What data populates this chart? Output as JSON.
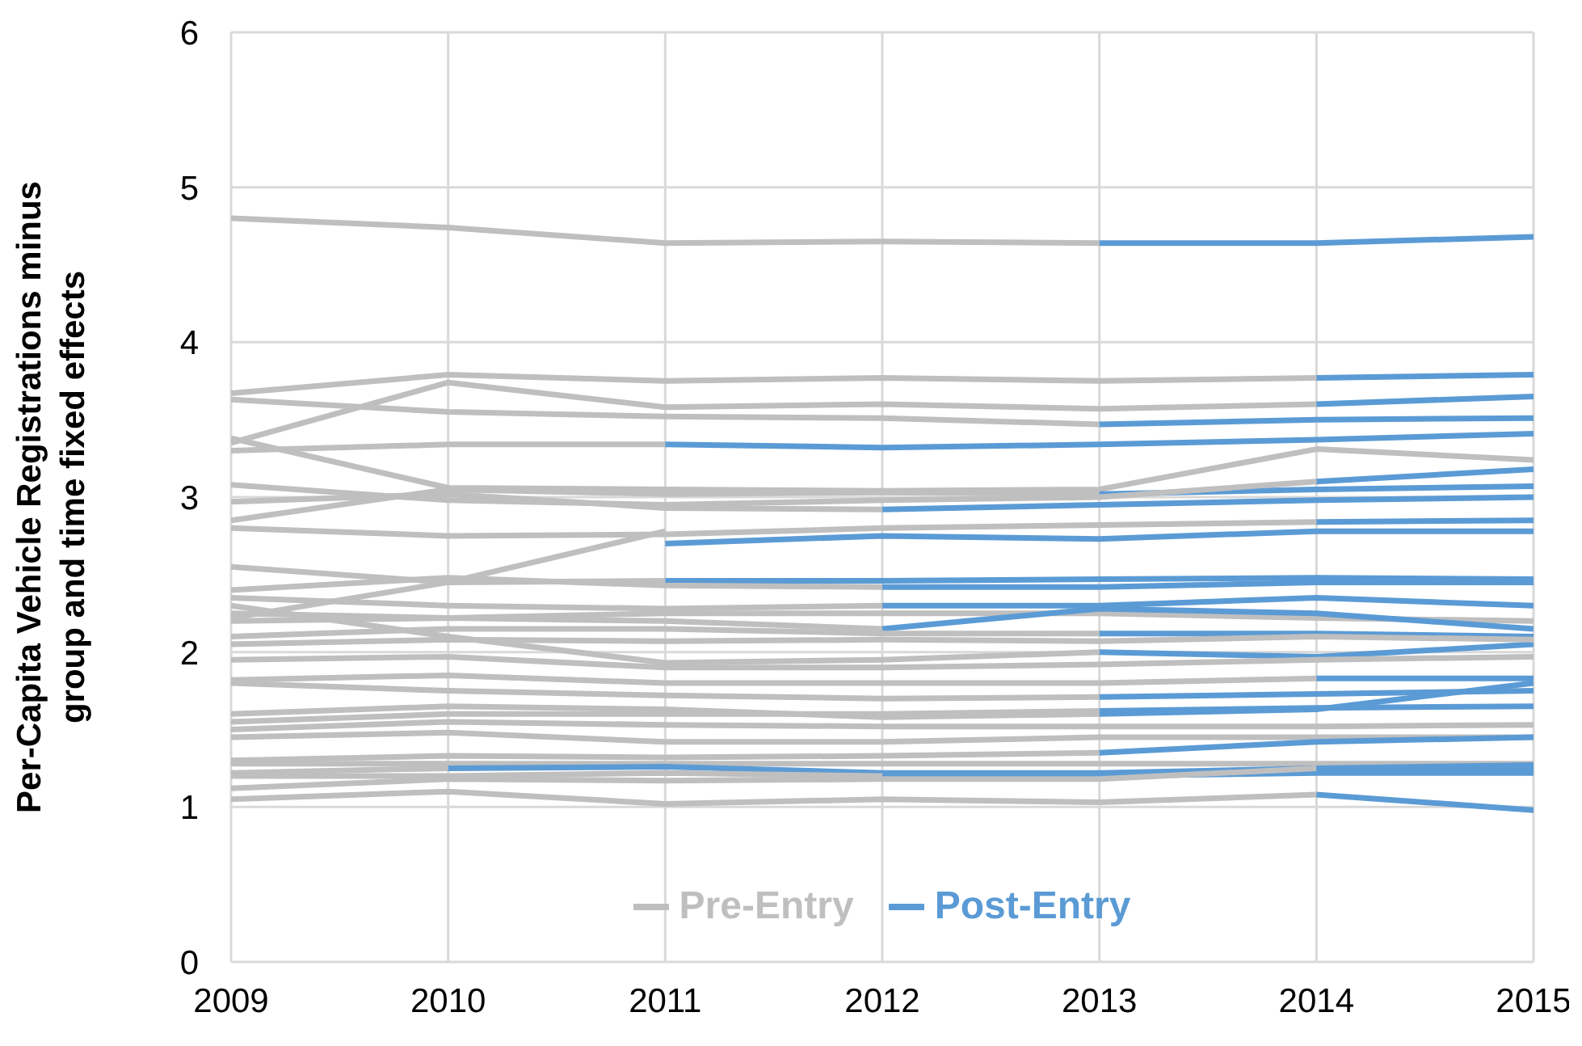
{
  "chart_data": {
    "type": "line",
    "ylabel": "Per-Capita Vehicle Registrations minus group and time fixed effects",
    "x": [
      2009,
      2010,
      2011,
      2012,
      2013,
      2014,
      2015
    ],
    "xlim": [
      2009,
      2015
    ],
    "xticks": [
      2009,
      2010,
      2011,
      2012,
      2013,
      2014,
      2015
    ],
    "ylim": [
      0,
      6
    ],
    "yticks": [
      0,
      1,
      2,
      3,
      4,
      5,
      6
    ],
    "grid": true,
    "legend": "bottom",
    "marker": "none",
    "line_style": "solid",
    "series": [
      {
        "name": "Pre-Entry",
        "color": "#bfbfbf",
        "values": [
          4.8,
          4.74,
          4.64,
          4.65,
          4.64,
          null,
          null
        ]
      },
      {
        "name": "Post-Entry",
        "color": "#5b9bd5",
        "values": [
          null,
          null,
          null,
          null,
          4.64,
          4.64,
          4.68
        ]
      },
      {
        "color": "#bfbfbf",
        "values": [
          3.67,
          3.79,
          3.75,
          3.77,
          3.75,
          3.77,
          null
        ]
      },
      {
        "color": "#5b9bd5",
        "values": [
          null,
          null,
          null,
          null,
          null,
          3.77,
          3.79
        ]
      },
      {
        "color": "#bfbfbf",
        "values": [
          3.35,
          3.74,
          3.58,
          3.6,
          3.57,
          3.6,
          null
        ]
      },
      {
        "color": "#5b9bd5",
        "values": [
          null,
          null,
          null,
          null,
          null,
          3.6,
          3.65
        ]
      },
      {
        "color": "#bfbfbf",
        "values": [
          3.63,
          3.55,
          3.52,
          3.51,
          3.47,
          null,
          null
        ]
      },
      {
        "color": "#5b9bd5",
        "values": [
          null,
          null,
          null,
          null,
          3.47,
          3.5,
          3.51
        ]
      },
      {
        "color": "#bfbfbf",
        "values": [
          3.3,
          3.34,
          3.34,
          null,
          null,
          null,
          null
        ]
      },
      {
        "color": "#5b9bd5",
        "values": [
          null,
          null,
          3.34,
          3.32,
          3.34,
          3.37,
          3.41
        ]
      },
      {
        "color": "#bfbfbf",
        "values": [
          3.38,
          3.06,
          3.05,
          3.04,
          3.05,
          3.31,
          3.24
        ]
      },
      {
        "color": "#bfbfbf",
        "values": [
          2.85,
          3.05,
          3.02,
          3.03,
          3.02,
          null,
          null
        ]
      },
      {
        "color": "#5b9bd5",
        "values": [
          null,
          null,
          null,
          null,
          3.02,
          3.05,
          3.07
        ]
      },
      {
        "color": "#bfbfbf",
        "values": [
          3.08,
          2.98,
          2.95,
          2.98,
          3.0,
          3.1,
          null
        ]
      },
      {
        "color": "#5b9bd5",
        "values": [
          null,
          null,
          null,
          null,
          null,
          3.1,
          3.18
        ]
      },
      {
        "color": "#bfbfbf",
        "values": [
          2.97,
          3.02,
          2.93,
          2.92,
          null,
          null,
          null
        ]
      },
      {
        "color": "#5b9bd5",
        "values": [
          null,
          null,
          null,
          2.92,
          2.95,
          2.98,
          3.0
        ]
      },
      {
        "color": "#bfbfbf",
        "values": [
          2.8,
          2.75,
          2.76,
          2.8,
          2.82,
          2.84,
          null
        ]
      },
      {
        "color": "#5b9bd5",
        "values": [
          null,
          null,
          null,
          null,
          null,
          2.84,
          2.85
        ]
      },
      {
        "color": "#bfbfbf",
        "values": [
          2.22,
          2.45,
          2.78,
          null,
          null,
          null,
          null
        ]
      },
      {
        "color": "#5b9bd5",
        "values": [
          null,
          null,
          2.7,
          2.75,
          2.73,
          2.78,
          2.78
        ]
      },
      {
        "color": "#bfbfbf",
        "values": [
          2.55,
          2.45,
          2.46,
          null,
          null,
          null,
          null
        ]
      },
      {
        "color": "#5b9bd5",
        "values": [
          null,
          null,
          2.46,
          2.46,
          2.47,
          2.48,
          2.47
        ]
      },
      {
        "color": "#bfbfbf",
        "values": [
          2.4,
          2.48,
          2.43,
          2.42,
          null,
          null,
          null
        ]
      },
      {
        "color": "#5b9bd5",
        "values": [
          null,
          null,
          null,
          2.42,
          2.42,
          2.45,
          2.45
        ]
      },
      {
        "color": "#bfbfbf",
        "values": [
          2.35,
          2.3,
          2.28,
          2.3,
          null,
          null,
          null
        ]
      },
      {
        "color": "#5b9bd5",
        "values": [
          null,
          null,
          null,
          2.3,
          2.3,
          2.35,
          2.3
        ]
      },
      {
        "color": "#bfbfbf",
        "values": [
          2.25,
          2.22,
          2.25,
          2.25,
          2.25,
          2.22,
          2.2
        ]
      },
      {
        "color": "#bfbfbf",
        "values": [
          2.2,
          2.22,
          2.2,
          2.15,
          null,
          null,
          null
        ]
      },
      {
        "color": "#5b9bd5",
        "values": [
          null,
          null,
          null,
          2.15,
          2.28,
          2.25,
          2.15
        ]
      },
      {
        "color": "#bfbfbf",
        "values": [
          2.1,
          2.15,
          2.15,
          2.12,
          2.12,
          null,
          null
        ]
      },
      {
        "color": "#5b9bd5",
        "values": [
          null,
          null,
          null,
          null,
          2.12,
          2.12,
          2.1
        ]
      },
      {
        "color": "#bfbfbf",
        "values": [
          2.3,
          2.1,
          1.93,
          1.95,
          2.0,
          null,
          null
        ]
      },
      {
        "color": "#5b9bd5",
        "values": [
          null,
          null,
          null,
          null,
          2.0,
          1.97,
          2.05
        ]
      },
      {
        "color": "#bfbfbf",
        "values": [
          2.05,
          2.08,
          2.07,
          2.08,
          2.07,
          2.1,
          2.08
        ]
      },
      {
        "color": "#bfbfbf",
        "values": [
          1.95,
          1.97,
          1.9,
          1.9,
          1.92,
          1.95,
          1.97
        ]
      },
      {
        "color": "#bfbfbf",
        "values": [
          1.82,
          1.85,
          1.8,
          1.8,
          1.8,
          1.83,
          null
        ]
      },
      {
        "color": "#5b9bd5",
        "values": [
          null,
          null,
          null,
          null,
          null,
          1.83,
          1.83
        ]
      },
      {
        "color": "#bfbfbf",
        "values": [
          1.8,
          1.75,
          1.72,
          1.7,
          1.71,
          null,
          null
        ]
      },
      {
        "color": "#5b9bd5",
        "values": [
          null,
          null,
          null,
          null,
          1.71,
          1.73,
          1.75
        ]
      },
      {
        "color": "#bfbfbf",
        "values": [
          1.6,
          1.65,
          1.63,
          1.58,
          1.6,
          null,
          null
        ]
      },
      {
        "color": "#5b9bd5",
        "values": [
          null,
          null,
          null,
          null,
          1.6,
          1.63,
          1.8
        ]
      },
      {
        "color": "#bfbfbf",
        "values": [
          1.55,
          1.6,
          1.6,
          1.6,
          1.62,
          null,
          null
        ]
      },
      {
        "color": "#5b9bd5",
        "values": [
          null,
          null,
          null,
          null,
          1.62,
          1.64,
          1.65
        ]
      },
      {
        "color": "#bfbfbf",
        "values": [
          1.5,
          1.55,
          1.53,
          1.52,
          1.52,
          1.52,
          1.53
        ]
      },
      {
        "color": "#bfbfbf",
        "values": [
          1.45,
          1.48,
          1.42,
          1.42,
          1.45,
          1.45,
          1.45
        ]
      },
      {
        "color": "#bfbfbf",
        "values": [
          1.3,
          1.33,
          1.32,
          1.33,
          1.35,
          null,
          null
        ]
      },
      {
        "color": "#5b9bd5",
        "values": [
          null,
          null,
          null,
          null,
          1.35,
          1.42,
          1.45
        ]
      },
      {
        "color": "#bfbfbf",
        "values": [
          1.28,
          1.28,
          1.28,
          1.28,
          1.28,
          1.28,
          1.28
        ]
      },
      {
        "color": "#bfbfbf",
        "values": [
          1.22,
          1.25,
          null,
          null,
          null,
          null,
          null
        ]
      },
      {
        "color": "#5b9bd5",
        "values": [
          null,
          1.25,
          1.26,
          1.22,
          1.22,
          1.25,
          1.27
        ]
      },
      {
        "color": "#bfbfbf",
        "values": [
          1.2,
          1.2,
          1.22,
          1.2,
          null,
          null,
          null
        ]
      },
      {
        "color": "#5b9bd5",
        "values": [
          null,
          null,
          null,
          1.2,
          1.2,
          1.22,
          1.22
        ]
      },
      {
        "color": "#bfbfbf",
        "values": [
          1.12,
          1.18,
          1.17,
          1.18,
          1.18,
          1.25,
          null
        ]
      },
      {
        "color": "#5b9bd5",
        "values": [
          null,
          null,
          null,
          null,
          null,
          1.25,
          1.25
        ]
      },
      {
        "color": "#bfbfbf",
        "values": [
          1.05,
          1.1,
          1.02,
          1.05,
          1.03,
          1.08,
          null
        ]
      },
      {
        "color": "#5b9bd5",
        "values": [
          null,
          null,
          null,
          null,
          null,
          1.08,
          0.98
        ]
      }
    ]
  }
}
